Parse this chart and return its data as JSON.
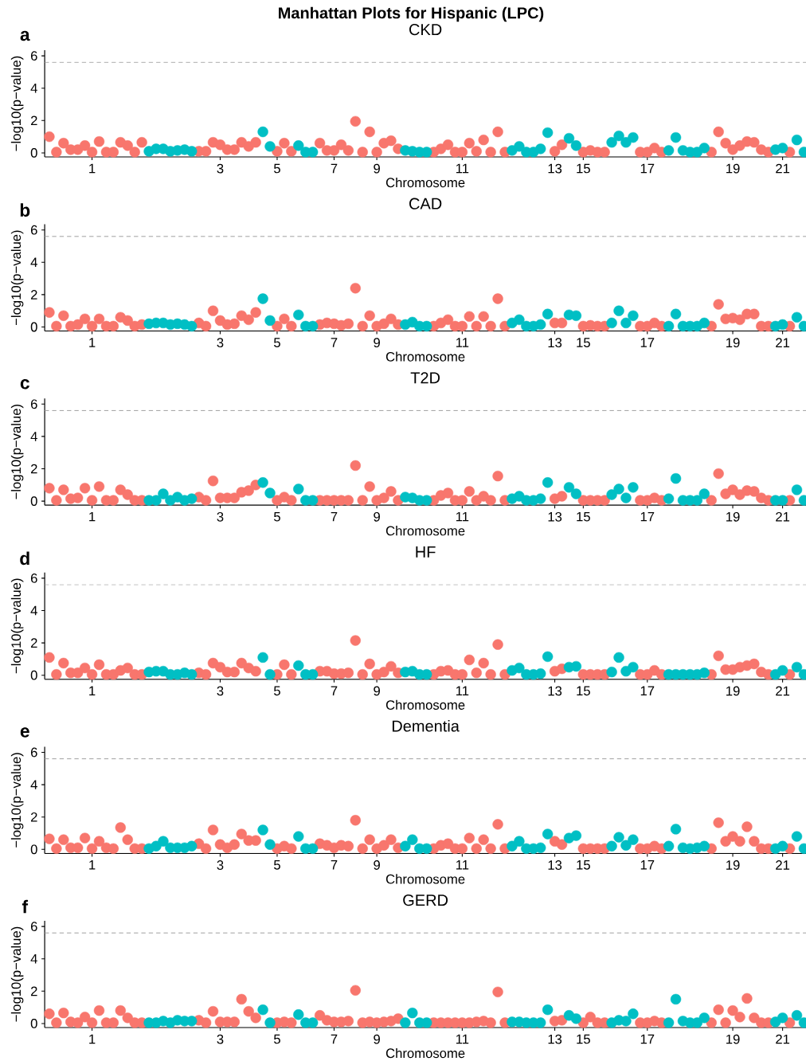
{
  "chart_data": [
    {
      "type": "scatter",
      "title": "CKD",
      "xlabel": "Chromosome",
      "ylabel": "−log10(p−value)",
      "annotations": [
        "Manhattan Plots for Hispanic (LPC)",
        "a"
      ],
      "marker": "circle",
      "ylim": [
        -0.25,
        6.35
      ],
      "yticks": [
        0,
        2,
        4,
        6
      ],
      "ref_lines": [
        {
          "axis": "y",
          "value": 5.6,
          "color": "#999999",
          "line_style": "dashed"
        }
      ],
      "categories": [
        null,
        null,
        null,
        null,
        null,
        null,
        "1",
        null,
        null,
        null,
        null,
        null,
        null,
        null,
        null,
        null,
        null,
        null,
        null,
        null,
        null,
        null,
        null,
        null,
        "3",
        null,
        null,
        null,
        null,
        null,
        null,
        null,
        "5",
        null,
        null,
        null,
        null,
        null,
        null,
        null,
        "7",
        null,
        null,
        null,
        null,
        null,
        "9",
        null,
        null,
        null,
        null,
        null,
        null,
        null,
        null,
        null,
        null,
        null,
        "11",
        null,
        null,
        null,
        null,
        null,
        null,
        null,
        null,
        null,
        null,
        null,
        null,
        "13",
        null,
        null,
        null,
        "15",
        null,
        null,
        null,
        null,
        null,
        null,
        null,
        null,
        "17",
        null,
        null,
        null,
        null,
        null,
        null,
        null,
        null,
        null,
        null,
        null,
        "19",
        null,
        null,
        null,
        null,
        null,
        null,
        "21",
        null,
        null,
        null
      ],
      "values": [
        1.0,
        0.05,
        0.6,
        0.2,
        0.2,
        0.45,
        0.05,
        0.7,
        0.05,
        0.05,
        0.65,
        0.45,
        0.05,
        0.65,
        0.1,
        0.25,
        0.25,
        0.1,
        0.15,
        0.2,
        0.1,
        0.1,
        0.1,
        0.65,
        0.5,
        0.2,
        0.2,
        0.65,
        0.4,
        0.65,
        1.3,
        0.4,
        0.1,
        0.6,
        0.1,
        0.45,
        0.05,
        0.05,
        0.6,
        0.15,
        0.15,
        0.5,
        0.15,
        1.95,
        0.05,
        1.3,
        0.05,
        0.6,
        0.75,
        0.25,
        0.15,
        0.1,
        0.05,
        0.05,
        0.05,
        0.25,
        0.5,
        0.05,
        0.05,
        0.6,
        0.1,
        0.8,
        0.05,
        1.3,
        0.05,
        0.15,
        0.4,
        0.05,
        0.05,
        0.25,
        1.25,
        0.1,
        0.5,
        0.9,
        0.45,
        0.05,
        0.15,
        0.05,
        0.05,
        0.65,
        1.05,
        0.65,
        0.95,
        0.05,
        0.05,
        0.3,
        0.05,
        0.15,
        0.95,
        0.15,
        0.05,
        0.05,
        0.3,
        0.05,
        1.3,
        0.6,
        0.2,
        0.45,
        0.7,
        0.65,
        0.2,
        0.05,
        0.2,
        0.3,
        0.05,
        0.8,
        0.05
      ],
      "colors": [
        "#f8766d",
        "#f8766d",
        "#f8766d",
        "#f8766d",
        "#f8766d",
        "#f8766d",
        "#f8766d",
        "#f8766d",
        "#f8766d",
        "#f8766d",
        "#f8766d",
        "#f8766d",
        "#f8766d",
        "#f8766d",
        "#00bfc4",
        "#00bfc4",
        "#00bfc4",
        "#00bfc4",
        "#00bfc4",
        "#00bfc4",
        "#00bfc4",
        "#f8766d",
        "#f8766d",
        "#f8766d",
        "#f8766d",
        "#f8766d",
        "#f8766d",
        "#f8766d",
        "#f8766d",
        "#f8766d",
        "#00bfc4",
        "#00bfc4",
        "#f8766d",
        "#f8766d",
        "#f8766d",
        "#00bfc4",
        "#00bfc4",
        "#00bfc4",
        "#f8766d",
        "#f8766d",
        "#f8766d",
        "#f8766d",
        "#f8766d",
        "#f8766d",
        "#f8766d",
        "#f8766d",
        "#f8766d",
        "#f8766d",
        "#f8766d",
        "#f8766d",
        "#00bfc4",
        "#00bfc4",
        "#00bfc4",
        "#00bfc4",
        "#f8766d",
        "#f8766d",
        "#f8766d",
        "#f8766d",
        "#f8766d",
        "#f8766d",
        "#f8766d",
        "#f8766d",
        "#f8766d",
        "#f8766d",
        "#f8766d",
        "#00bfc4",
        "#00bfc4",
        "#00bfc4",
        "#00bfc4",
        "#00bfc4",
        "#00bfc4",
        "#f8766d",
        "#f8766d",
        "#00bfc4",
        "#00bfc4",
        "#f8766d",
        "#f8766d",
        "#f8766d",
        "#f8766d",
        "#00bfc4",
        "#00bfc4",
        "#00bfc4",
        "#00bfc4",
        "#f8766d",
        "#f8766d",
        "#f8766d",
        "#f8766d",
        "#00bfc4",
        "#00bfc4",
        "#00bfc4",
        "#00bfc4",
        "#00bfc4",
        "#00bfc4",
        "#f8766d",
        "#f8766d",
        "#f8766d",
        "#f8766d",
        "#f8766d",
        "#f8766d",
        "#f8766d",
        "#f8766d",
        "#f8766d",
        "#00bfc4",
        "#00bfc4",
        "#f8766d",
        "#00bfc4",
        "#00bfc4"
      ]
    },
    {
      "type": "scatter",
      "title": "CAD",
      "xlabel": "Chromosome",
      "ylabel": "−log10(p−value)",
      "annotations": [
        "b"
      ],
      "marker": "circle",
      "ylim": [
        -0.25,
        6.35
      ],
      "yticks": [
        0,
        2,
        4,
        6
      ],
      "ref_lines": [
        {
          "axis": "y",
          "value": 5.6,
          "color": "#999999",
          "line_style": "dashed"
        }
      ],
      "categories": [
        null,
        null,
        null,
        null,
        null,
        null,
        "1",
        null,
        null,
        null,
        null,
        null,
        null,
        null,
        null,
        null,
        null,
        null,
        null,
        null,
        null,
        null,
        null,
        null,
        "3",
        null,
        null,
        null,
        null,
        null,
        null,
        null,
        "5",
        null,
        null,
        null,
        null,
        null,
        null,
        null,
        "7",
        null,
        null,
        null,
        null,
        null,
        "9",
        null,
        null,
        null,
        null,
        null,
        null,
        null,
        null,
        null,
        null,
        null,
        "11",
        null,
        null,
        null,
        null,
        null,
        null,
        null,
        null,
        null,
        null,
        null,
        null,
        "13",
        null,
        null,
        null,
        "15",
        null,
        null,
        null,
        null,
        null,
        null,
        null,
        null,
        "17",
        null,
        null,
        null,
        null,
        null,
        null,
        null,
        null,
        null,
        null,
        null,
        "19",
        null,
        null,
        null,
        null,
        null,
        null,
        "21",
        null,
        null,
        null
      ],
      "values": [
        0.9,
        0.05,
        0.7,
        0.05,
        0.15,
        0.5,
        0.05,
        0.5,
        0.05,
        0.05,
        0.6,
        0.4,
        0.05,
        0.15,
        0.2,
        0.25,
        0.25,
        0.15,
        0.2,
        0.15,
        0.05,
        0.25,
        0.05,
        1.0,
        0.4,
        0.15,
        0.2,
        0.7,
        0.45,
        0.9,
        1.75,
        0.4,
        0.05,
        0.5,
        0.05,
        0.75,
        0.05,
        0.05,
        0.15,
        0.25,
        0.2,
        0.1,
        0.2,
        2.4,
        0.05,
        0.7,
        0.05,
        0.2,
        0.5,
        0.15,
        0.15,
        0.3,
        0.05,
        0.05,
        0.05,
        0.25,
        0.45,
        0.05,
        0.05,
        0.65,
        0.05,
        0.65,
        0.05,
        1.75,
        0.05,
        0.25,
        0.45,
        0.05,
        0.05,
        0.15,
        0.8,
        0.25,
        0.25,
        0.75,
        0.7,
        0.05,
        0.1,
        0.05,
        0.05,
        0.25,
        1.0,
        0.25,
        0.7,
        0.05,
        0.05,
        0.25,
        0.05,
        0.05,
        0.8,
        0.05,
        0.05,
        0.05,
        0.25,
        0.05,
        1.4,
        0.5,
        0.55,
        0.45,
        0.8,
        0.8,
        0.05,
        0.05,
        0.05,
        0.15,
        0.05,
        0.6,
        0.05
      ],
      "colors": [
        "#f8766d",
        "#f8766d",
        "#f8766d",
        "#f8766d",
        "#f8766d",
        "#f8766d",
        "#f8766d",
        "#f8766d",
        "#f8766d",
        "#f8766d",
        "#f8766d",
        "#f8766d",
        "#f8766d",
        "#f8766d",
        "#00bfc4",
        "#00bfc4",
        "#00bfc4",
        "#00bfc4",
        "#00bfc4",
        "#00bfc4",
        "#00bfc4",
        "#f8766d",
        "#f8766d",
        "#f8766d",
        "#f8766d",
        "#f8766d",
        "#f8766d",
        "#f8766d",
        "#f8766d",
        "#f8766d",
        "#00bfc4",
        "#00bfc4",
        "#f8766d",
        "#f8766d",
        "#f8766d",
        "#00bfc4",
        "#00bfc4",
        "#00bfc4",
        "#f8766d",
        "#f8766d",
        "#f8766d",
        "#f8766d",
        "#f8766d",
        "#f8766d",
        "#f8766d",
        "#f8766d",
        "#f8766d",
        "#f8766d",
        "#f8766d",
        "#f8766d",
        "#00bfc4",
        "#00bfc4",
        "#00bfc4",
        "#00bfc4",
        "#f8766d",
        "#f8766d",
        "#f8766d",
        "#f8766d",
        "#f8766d",
        "#f8766d",
        "#f8766d",
        "#f8766d",
        "#f8766d",
        "#f8766d",
        "#f8766d",
        "#00bfc4",
        "#00bfc4",
        "#00bfc4",
        "#00bfc4",
        "#00bfc4",
        "#00bfc4",
        "#f8766d",
        "#f8766d",
        "#00bfc4",
        "#00bfc4",
        "#f8766d",
        "#f8766d",
        "#f8766d",
        "#f8766d",
        "#00bfc4",
        "#00bfc4",
        "#00bfc4",
        "#00bfc4",
        "#f8766d",
        "#f8766d",
        "#f8766d",
        "#f8766d",
        "#00bfc4",
        "#00bfc4",
        "#00bfc4",
        "#00bfc4",
        "#00bfc4",
        "#00bfc4",
        "#f8766d",
        "#f8766d",
        "#f8766d",
        "#f8766d",
        "#f8766d",
        "#f8766d",
        "#f8766d",
        "#f8766d",
        "#f8766d",
        "#00bfc4",
        "#00bfc4",
        "#f8766d",
        "#00bfc4",
        "#00bfc4"
      ]
    },
    {
      "type": "scatter",
      "title": "T2D",
      "xlabel": "Chromosome",
      "ylabel": "−log10(p−value)",
      "annotations": [
        "c"
      ],
      "marker": "circle",
      "ylim": [
        -0.25,
        6.35
      ],
      "yticks": [
        0,
        2,
        4,
        6
      ],
      "ref_lines": [
        {
          "axis": "y",
          "value": 5.6,
          "color": "#999999",
          "line_style": "dashed"
        }
      ],
      "categories": [
        null,
        null,
        null,
        null,
        null,
        null,
        "1",
        null,
        null,
        null,
        null,
        null,
        null,
        null,
        null,
        null,
        null,
        null,
        null,
        null,
        null,
        null,
        null,
        null,
        "3",
        null,
        null,
        null,
        null,
        null,
        null,
        null,
        "5",
        null,
        null,
        null,
        null,
        null,
        null,
        null,
        "7",
        null,
        null,
        null,
        null,
        null,
        "9",
        null,
        null,
        null,
        null,
        null,
        null,
        null,
        null,
        null,
        null,
        null,
        "11",
        null,
        null,
        null,
        null,
        null,
        null,
        null,
        null,
        null,
        null,
        null,
        null,
        "13",
        null,
        null,
        null,
        "15",
        null,
        null,
        null,
        null,
        null,
        null,
        null,
        null,
        "17",
        null,
        null,
        null,
        null,
        null,
        null,
        null,
        null,
        null,
        null,
        null,
        "19",
        null,
        null,
        null,
        null,
        null,
        null,
        "21",
        null,
        null,
        null
      ],
      "values": [
        0.8,
        0.05,
        0.7,
        0.15,
        0.2,
        0.8,
        0.05,
        0.9,
        0.05,
        0.05,
        0.7,
        0.4,
        0.05,
        0.05,
        0.05,
        0.05,
        0.45,
        0.05,
        0.25,
        0.05,
        0.15,
        0.25,
        0.05,
        1.25,
        0.2,
        0.2,
        0.2,
        0.55,
        0.65,
        1.0,
        1.15,
        0.5,
        0.05,
        0.25,
        0.05,
        0.75,
        0.05,
        0.05,
        0.05,
        0.05,
        0.05,
        0.05,
        0.05,
        2.2,
        0.05,
        0.9,
        0.05,
        0.2,
        0.6,
        0.05,
        0.25,
        0.2,
        0.05,
        0.05,
        0.05,
        0.35,
        0.5,
        0.05,
        0.05,
        0.6,
        0.05,
        0.3,
        0.05,
        1.55,
        0.05,
        0.15,
        0.3,
        0.05,
        0.05,
        0.15,
        1.15,
        0.15,
        0.3,
        0.85,
        0.45,
        0.05,
        0.05,
        0.05,
        0.05,
        0.4,
        0.75,
        0.2,
        0.85,
        0.05,
        0.05,
        0.2,
        0.05,
        0.15,
        1.4,
        0.05,
        0.05,
        0.05,
        0.45,
        0.05,
        1.7,
        0.45,
        0.7,
        0.4,
        0.65,
        0.6,
        0.2,
        0.05,
        0.05,
        0.05,
        0.05,
        0.7,
        0.05
      ],
      "colors": [
        "#f8766d",
        "#f8766d",
        "#f8766d",
        "#f8766d",
        "#f8766d",
        "#f8766d",
        "#f8766d",
        "#f8766d",
        "#f8766d",
        "#f8766d",
        "#f8766d",
        "#f8766d",
        "#f8766d",
        "#f8766d",
        "#00bfc4",
        "#00bfc4",
        "#00bfc4",
        "#00bfc4",
        "#00bfc4",
        "#00bfc4",
        "#00bfc4",
        "#f8766d",
        "#f8766d",
        "#f8766d",
        "#f8766d",
        "#f8766d",
        "#f8766d",
        "#f8766d",
        "#f8766d",
        "#f8766d",
        "#00bfc4",
        "#00bfc4",
        "#f8766d",
        "#f8766d",
        "#f8766d",
        "#00bfc4",
        "#00bfc4",
        "#00bfc4",
        "#f8766d",
        "#f8766d",
        "#f8766d",
        "#f8766d",
        "#f8766d",
        "#f8766d",
        "#f8766d",
        "#f8766d",
        "#f8766d",
        "#f8766d",
        "#f8766d",
        "#f8766d",
        "#00bfc4",
        "#00bfc4",
        "#00bfc4",
        "#00bfc4",
        "#f8766d",
        "#f8766d",
        "#f8766d",
        "#f8766d",
        "#f8766d",
        "#f8766d",
        "#f8766d",
        "#f8766d",
        "#f8766d",
        "#f8766d",
        "#f8766d",
        "#00bfc4",
        "#00bfc4",
        "#00bfc4",
        "#00bfc4",
        "#00bfc4",
        "#00bfc4",
        "#f8766d",
        "#f8766d",
        "#00bfc4",
        "#00bfc4",
        "#f8766d",
        "#f8766d",
        "#f8766d",
        "#f8766d",
        "#00bfc4",
        "#00bfc4",
        "#00bfc4",
        "#00bfc4",
        "#f8766d",
        "#f8766d",
        "#f8766d",
        "#f8766d",
        "#00bfc4",
        "#00bfc4",
        "#00bfc4",
        "#00bfc4",
        "#00bfc4",
        "#00bfc4",
        "#f8766d",
        "#f8766d",
        "#f8766d",
        "#f8766d",
        "#f8766d",
        "#f8766d",
        "#f8766d",
        "#f8766d",
        "#f8766d",
        "#00bfc4",
        "#00bfc4",
        "#f8766d",
        "#00bfc4",
        "#00bfc4"
      ]
    },
    {
      "type": "scatter",
      "title": "HF",
      "xlabel": "Chromosome",
      "ylabel": "−log10(p−value)",
      "annotations": [
        "d"
      ],
      "marker": "circle",
      "ylim": [
        -0.25,
        6.35
      ],
      "yticks": [
        0,
        2,
        4,
        6
      ],
      "ref_lines": [
        {
          "axis": "y",
          "value": 5.6,
          "color": "#999999",
          "line_style": "dashed"
        }
      ],
      "categories": [
        null,
        null,
        null,
        null,
        null,
        null,
        "1",
        null,
        null,
        null,
        null,
        null,
        null,
        null,
        null,
        null,
        null,
        null,
        null,
        null,
        null,
        null,
        null,
        null,
        "3",
        null,
        null,
        null,
        null,
        null,
        null,
        null,
        "5",
        null,
        null,
        null,
        null,
        null,
        null,
        null,
        "7",
        null,
        null,
        null,
        null,
        null,
        "9",
        null,
        null,
        null,
        null,
        null,
        null,
        null,
        null,
        null,
        null,
        null,
        "11",
        null,
        null,
        null,
        null,
        null,
        null,
        null,
        null,
        null,
        null,
        null,
        null,
        "13",
        null,
        null,
        null,
        "15",
        null,
        null,
        null,
        null,
        null,
        null,
        null,
        null,
        "17",
        null,
        null,
        null,
        null,
        null,
        null,
        null,
        null,
        null,
        null,
        null,
        "19",
        null,
        null,
        null,
        null,
        null,
        null,
        "21",
        null,
        null,
        null
      ],
      "values": [
        1.1,
        0.05,
        0.75,
        0.15,
        0.15,
        0.45,
        0.05,
        0.65,
        0.05,
        0.05,
        0.3,
        0.45,
        0.05,
        0.05,
        0.2,
        0.25,
        0.25,
        0.05,
        0.05,
        0.15,
        0.05,
        0.15,
        0.05,
        0.75,
        0.5,
        0.2,
        0.2,
        0.75,
        0.45,
        0.25,
        1.1,
        0.05,
        0.05,
        0.65,
        0.05,
        0.6,
        0.05,
        0.05,
        0.25,
        0.25,
        0.1,
        0.1,
        0.15,
        2.15,
        0.05,
        0.7,
        0.05,
        0.2,
        0.55,
        0.15,
        0.2,
        0.25,
        0.05,
        0.05,
        0.05,
        0.25,
        0.3,
        0.05,
        0.05,
        0.95,
        0.15,
        0.75,
        0.05,
        1.9,
        0.05,
        0.3,
        0.45,
        0.05,
        0.05,
        0.1,
        1.15,
        0.25,
        0.4,
        0.5,
        0.55,
        0.05,
        0.05,
        0.05,
        0.05,
        0.2,
        1.1,
        0.25,
        0.5,
        0.05,
        0.05,
        0.3,
        0.05,
        0.05,
        0.05,
        0.05,
        0.05,
        0.05,
        0.15,
        0.05,
        1.2,
        0.35,
        0.35,
        0.5,
        0.6,
        0.7,
        0.2,
        0.05,
        0.05,
        0.3,
        0.05,
        0.5,
        0.05
      ],
      "colors": [
        "#f8766d",
        "#f8766d",
        "#f8766d",
        "#f8766d",
        "#f8766d",
        "#f8766d",
        "#f8766d",
        "#f8766d",
        "#f8766d",
        "#f8766d",
        "#f8766d",
        "#f8766d",
        "#f8766d",
        "#f8766d",
        "#00bfc4",
        "#00bfc4",
        "#00bfc4",
        "#00bfc4",
        "#00bfc4",
        "#00bfc4",
        "#00bfc4",
        "#f8766d",
        "#f8766d",
        "#f8766d",
        "#f8766d",
        "#f8766d",
        "#f8766d",
        "#f8766d",
        "#f8766d",
        "#f8766d",
        "#00bfc4",
        "#00bfc4",
        "#f8766d",
        "#f8766d",
        "#f8766d",
        "#00bfc4",
        "#00bfc4",
        "#00bfc4",
        "#f8766d",
        "#f8766d",
        "#f8766d",
        "#f8766d",
        "#f8766d",
        "#f8766d",
        "#f8766d",
        "#f8766d",
        "#f8766d",
        "#f8766d",
        "#f8766d",
        "#f8766d",
        "#00bfc4",
        "#00bfc4",
        "#00bfc4",
        "#00bfc4",
        "#f8766d",
        "#f8766d",
        "#f8766d",
        "#f8766d",
        "#f8766d",
        "#f8766d",
        "#f8766d",
        "#f8766d",
        "#f8766d",
        "#f8766d",
        "#f8766d",
        "#00bfc4",
        "#00bfc4",
        "#00bfc4",
        "#00bfc4",
        "#00bfc4",
        "#00bfc4",
        "#f8766d",
        "#f8766d",
        "#00bfc4",
        "#00bfc4",
        "#f8766d",
        "#f8766d",
        "#f8766d",
        "#f8766d",
        "#00bfc4",
        "#00bfc4",
        "#00bfc4",
        "#00bfc4",
        "#f8766d",
        "#f8766d",
        "#f8766d",
        "#f8766d",
        "#00bfc4",
        "#00bfc4",
        "#00bfc4",
        "#00bfc4",
        "#00bfc4",
        "#00bfc4",
        "#f8766d",
        "#f8766d",
        "#f8766d",
        "#f8766d",
        "#f8766d",
        "#f8766d",
        "#f8766d",
        "#f8766d",
        "#f8766d",
        "#00bfc4",
        "#00bfc4",
        "#f8766d",
        "#00bfc4",
        "#00bfc4"
      ]
    },
    {
      "type": "scatter",
      "title": "Dementia",
      "xlabel": "Chromosome",
      "ylabel": "−log10(p−value)",
      "annotations": [
        "e"
      ],
      "marker": "circle",
      "ylim": [
        -0.25,
        6.35
      ],
      "yticks": [
        0,
        2,
        4,
        6
      ],
      "ref_lines": [
        {
          "axis": "y",
          "value": 5.6,
          "color": "#999999",
          "line_style": "dashed"
        }
      ],
      "categories": [
        null,
        null,
        null,
        null,
        null,
        null,
        "1",
        null,
        null,
        null,
        null,
        null,
        null,
        null,
        null,
        null,
        null,
        null,
        null,
        null,
        null,
        null,
        null,
        null,
        "3",
        null,
        null,
        null,
        null,
        null,
        null,
        null,
        "5",
        null,
        null,
        null,
        null,
        null,
        null,
        null,
        "7",
        null,
        null,
        null,
        null,
        null,
        "9",
        null,
        null,
        null,
        null,
        null,
        null,
        null,
        null,
        null,
        null,
        null,
        "11",
        null,
        null,
        null,
        null,
        null,
        null,
        null,
        null,
        null,
        null,
        null,
        null,
        "13",
        null,
        null,
        null,
        "15",
        null,
        null,
        null,
        null,
        null,
        null,
        null,
        null,
        "17",
        null,
        null,
        null,
        null,
        null,
        null,
        null,
        null,
        null,
        null,
        null,
        "19",
        null,
        null,
        null,
        null,
        null,
        null,
        "21",
        null,
        null,
        null
      ],
      "values": [
        0.65,
        0.05,
        0.6,
        0.1,
        0.1,
        0.7,
        0.05,
        0.5,
        0.1,
        0.05,
        1.35,
        0.6,
        0.05,
        0.05,
        0.05,
        0.2,
        0.5,
        0.1,
        0.1,
        0.1,
        0.2,
        0.35,
        0.05,
        1.2,
        0.3,
        0.1,
        0.3,
        0.95,
        0.55,
        0.55,
        1.2,
        0.3,
        0.05,
        0.2,
        0.05,
        0.8,
        0.05,
        0.05,
        0.35,
        0.25,
        0.1,
        0.25,
        0.2,
        1.8,
        0.05,
        0.6,
        0.05,
        0.25,
        0.6,
        0.1,
        0.2,
        0.6,
        0.05,
        0.05,
        0.05,
        0.25,
        0.35,
        0.05,
        0.05,
        0.7,
        0.05,
        0.6,
        0.05,
        1.55,
        0.05,
        0.2,
        0.5,
        0.05,
        0.05,
        0.1,
        0.95,
        0.5,
        0.3,
        0.7,
        0.85,
        0.05,
        0.05,
        0.05,
        0.05,
        0.2,
        0.75,
        0.25,
        0.6,
        0.05,
        0.05,
        0.2,
        0.05,
        0.2,
        1.25,
        0.1,
        0.05,
        0.1,
        0.2,
        0.05,
        1.65,
        0.5,
        0.8,
        0.5,
        1.4,
        0.5,
        0.05,
        0.05,
        0.05,
        0.2,
        0.05,
        0.8,
        0.05
      ],
      "colors": [
        "#f8766d",
        "#f8766d",
        "#f8766d",
        "#f8766d",
        "#f8766d",
        "#f8766d",
        "#f8766d",
        "#f8766d",
        "#f8766d",
        "#f8766d",
        "#f8766d",
        "#f8766d",
        "#f8766d",
        "#f8766d",
        "#00bfc4",
        "#00bfc4",
        "#00bfc4",
        "#00bfc4",
        "#00bfc4",
        "#00bfc4",
        "#00bfc4",
        "#f8766d",
        "#f8766d",
        "#f8766d",
        "#f8766d",
        "#f8766d",
        "#f8766d",
        "#f8766d",
        "#f8766d",
        "#f8766d",
        "#00bfc4",
        "#00bfc4",
        "#f8766d",
        "#f8766d",
        "#f8766d",
        "#00bfc4",
        "#00bfc4",
        "#00bfc4",
        "#f8766d",
        "#f8766d",
        "#f8766d",
        "#f8766d",
        "#f8766d",
        "#f8766d",
        "#f8766d",
        "#f8766d",
        "#f8766d",
        "#f8766d",
        "#f8766d",
        "#f8766d",
        "#00bfc4",
        "#00bfc4",
        "#00bfc4",
        "#00bfc4",
        "#f8766d",
        "#f8766d",
        "#f8766d",
        "#f8766d",
        "#f8766d",
        "#f8766d",
        "#f8766d",
        "#f8766d",
        "#f8766d",
        "#f8766d",
        "#f8766d",
        "#00bfc4",
        "#00bfc4",
        "#00bfc4",
        "#00bfc4",
        "#00bfc4",
        "#00bfc4",
        "#f8766d",
        "#f8766d",
        "#00bfc4",
        "#00bfc4",
        "#f8766d",
        "#f8766d",
        "#f8766d",
        "#f8766d",
        "#00bfc4",
        "#00bfc4",
        "#00bfc4",
        "#00bfc4",
        "#f8766d",
        "#f8766d",
        "#f8766d",
        "#f8766d",
        "#00bfc4",
        "#00bfc4",
        "#00bfc4",
        "#00bfc4",
        "#00bfc4",
        "#00bfc4",
        "#f8766d",
        "#f8766d",
        "#f8766d",
        "#f8766d",
        "#f8766d",
        "#f8766d",
        "#f8766d",
        "#f8766d",
        "#f8766d",
        "#00bfc4",
        "#00bfc4",
        "#f8766d",
        "#00bfc4",
        "#00bfc4"
      ]
    },
    {
      "type": "scatter",
      "title": "GERD",
      "xlabel": "Chromosome",
      "ylabel": "−log10(p−value)",
      "annotations": [
        "f"
      ],
      "marker": "circle",
      "ylim": [
        -0.25,
        6.35
      ],
      "yticks": [
        0,
        2,
        4,
        6
      ],
      "ref_lines": [
        {
          "axis": "y",
          "value": 5.6,
          "color": "#999999",
          "line_style": "dashed"
        }
      ],
      "categories": [
        null,
        null,
        null,
        null,
        null,
        null,
        "1",
        null,
        null,
        null,
        null,
        null,
        null,
        null,
        null,
        null,
        null,
        null,
        null,
        null,
        null,
        null,
        null,
        null,
        "3",
        null,
        null,
        null,
        null,
        null,
        null,
        null,
        "5",
        null,
        null,
        null,
        null,
        null,
        null,
        null,
        "7",
        null,
        null,
        null,
        null,
        null,
        "9",
        null,
        null,
        null,
        null,
        null,
        null,
        null,
        null,
        null,
        null,
        null,
        "11",
        null,
        null,
        null,
        null,
        null,
        null,
        null,
        null,
        null,
        null,
        null,
        null,
        "13",
        null,
        null,
        null,
        "15",
        null,
        null,
        null,
        null,
        null,
        null,
        null,
        null,
        "17",
        null,
        null,
        null,
        null,
        null,
        null,
        null,
        null,
        null,
        null,
        null,
        "19",
        null,
        null,
        null,
        null,
        null,
        null,
        "21",
        null,
        null,
        null
      ],
      "values": [
        0.6,
        0.05,
        0.65,
        0.1,
        0.05,
        0.4,
        0.05,
        0.8,
        0.05,
        0.05,
        0.8,
        0.35,
        0.05,
        0.05,
        0.05,
        0.05,
        0.15,
        0.05,
        0.2,
        0.15,
        0.15,
        0.2,
        0.05,
        0.75,
        0.1,
        0.1,
        0.1,
        1.5,
        0.75,
        0.35,
        0.85,
        0.05,
        0.05,
        0.1,
        0.05,
        0.55,
        0.05,
        0.05,
        0.5,
        0.2,
        0.1,
        0.1,
        0.15,
        2.05,
        0.05,
        0.1,
        0.05,
        0.1,
        0.15,
        0.3,
        0.05,
        0.65,
        0.05,
        0.05,
        0.05,
        0.05,
        0.05,
        0.05,
        0.05,
        0.05,
        0.1,
        0.15,
        0.05,
        1.95,
        0.05,
        0.1,
        0.1,
        0.05,
        0.05,
        0.05,
        0.85,
        0.15,
        0.2,
        0.5,
        0.3,
        0.05,
        0.4,
        0.05,
        0.05,
        0.05,
        0.2,
        0.15,
        0.6,
        0.05,
        0.05,
        0.15,
        0.05,
        0.05,
        1.5,
        0.15,
        0.05,
        0.05,
        0.35,
        0.05,
        0.85,
        0.05,
        0.8,
        0.4,
        1.55,
        0.35,
        0.05,
        0.05,
        0.1,
        0.35,
        0.05,
        0.5,
        0.05
      ],
      "colors": [
        "#f8766d",
        "#f8766d",
        "#f8766d",
        "#f8766d",
        "#f8766d",
        "#f8766d",
        "#f8766d",
        "#f8766d",
        "#f8766d",
        "#f8766d",
        "#f8766d",
        "#f8766d",
        "#f8766d",
        "#f8766d",
        "#00bfc4",
        "#00bfc4",
        "#00bfc4",
        "#00bfc4",
        "#00bfc4",
        "#00bfc4",
        "#00bfc4",
        "#f8766d",
        "#f8766d",
        "#f8766d",
        "#f8766d",
        "#f8766d",
        "#f8766d",
        "#f8766d",
        "#f8766d",
        "#f8766d",
        "#00bfc4",
        "#00bfc4",
        "#f8766d",
        "#f8766d",
        "#f8766d",
        "#00bfc4",
        "#00bfc4",
        "#00bfc4",
        "#f8766d",
        "#f8766d",
        "#f8766d",
        "#f8766d",
        "#f8766d",
        "#f8766d",
        "#f8766d",
        "#f8766d",
        "#f8766d",
        "#f8766d",
        "#f8766d",
        "#f8766d",
        "#00bfc4",
        "#00bfc4",
        "#00bfc4",
        "#00bfc4",
        "#f8766d",
        "#f8766d",
        "#f8766d",
        "#f8766d",
        "#f8766d",
        "#f8766d",
        "#f8766d",
        "#f8766d",
        "#f8766d",
        "#f8766d",
        "#f8766d",
        "#00bfc4",
        "#00bfc4",
        "#00bfc4",
        "#00bfc4",
        "#00bfc4",
        "#00bfc4",
        "#f8766d",
        "#f8766d",
        "#00bfc4",
        "#00bfc4",
        "#f8766d",
        "#f8766d",
        "#f8766d",
        "#f8766d",
        "#00bfc4",
        "#00bfc4",
        "#00bfc4",
        "#00bfc4",
        "#f8766d",
        "#f8766d",
        "#f8766d",
        "#f8766d",
        "#00bfc4",
        "#00bfc4",
        "#00bfc4",
        "#00bfc4",
        "#00bfc4",
        "#00bfc4",
        "#f8766d",
        "#f8766d",
        "#f8766d",
        "#f8766d",
        "#f8766d",
        "#f8766d",
        "#f8766d",
        "#f8766d",
        "#f8766d",
        "#00bfc4",
        "#00bfc4",
        "#f8766d",
        "#00bfc4",
        "#00bfc4"
      ]
    }
  ]
}
